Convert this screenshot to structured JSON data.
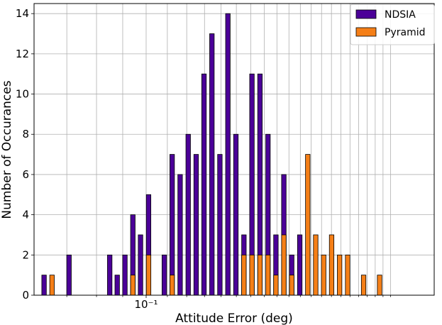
{
  "chart_data": {
    "type": "bar",
    "xlabel": "Attitude Error (deg)",
    "ylabel": "Number of Occurances",
    "x_scale": "log",
    "x_tick_label": "10⁻¹",
    "x_tick_value": 0.1,
    "ylim": [
      0,
      14.5
    ],
    "yticks": [
      0,
      2,
      4,
      6,
      8,
      10,
      12,
      14
    ],
    "grid": true,
    "legend_position": "top-right",
    "series": [
      {
        "name": "NDSIA",
        "color": "#4b0098",
        "points": [
          {
            "x": 0.0632,
            "y": 1
          },
          {
            "x": 0.0707,
            "y": 2
          },
          {
            "x": 0.0849,
            "y": 2
          },
          {
            "x": 0.0878,
            "y": 1
          },
          {
            "x": 0.0909,
            "y": 2
          },
          {
            "x": 0.0942,
            "y": 4
          },
          {
            "x": 0.0975,
            "y": 3
          },
          {
            "x": 0.1011,
            "y": 5
          },
          {
            "x": 0.1085,
            "y": 2
          },
          {
            "x": 0.1124,
            "y": 7
          },
          {
            "x": 0.1165,
            "y": 6
          },
          {
            "x": 0.1208,
            "y": 8
          },
          {
            "x": 0.1252,
            "y": 7
          },
          {
            "x": 0.1297,
            "y": 11
          },
          {
            "x": 0.1344,
            "y": 13
          },
          {
            "x": 0.1393,
            "y": 7
          },
          {
            "x": 0.1444,
            "y": 14
          },
          {
            "x": 0.1497,
            "y": 8
          },
          {
            "x": 0.1552,
            "y": 3
          },
          {
            "x": 0.1609,
            "y": 11
          },
          {
            "x": 0.1668,
            "y": 11
          },
          {
            "x": 0.1729,
            "y": 8
          },
          {
            "x": 0.1792,
            "y": 3
          },
          {
            "x": 0.1857,
            "y": 6
          },
          {
            "x": 0.1924,
            "y": 2
          },
          {
            "x": 0.1995,
            "y": 3
          }
        ]
      },
      {
        "name": "Pyramid",
        "color": "#f57f17",
        "points": [
          {
            "x": 0.0655,
            "y": 1
          },
          {
            "x": 0.0942,
            "y": 1
          },
          {
            "x": 0.1011,
            "y": 2
          },
          {
            "x": 0.1124,
            "y": 1
          },
          {
            "x": 0.1552,
            "y": 2
          },
          {
            "x": 0.1609,
            "y": 2
          },
          {
            "x": 0.1668,
            "y": 2
          },
          {
            "x": 0.1729,
            "y": 2
          },
          {
            "x": 0.1792,
            "y": 1
          },
          {
            "x": 0.1857,
            "y": 3
          },
          {
            "x": 0.1924,
            "y": 1
          },
          {
            "x": 0.2068,
            "y": 7
          },
          {
            "x": 0.2143,
            "y": 3
          },
          {
            "x": 0.2221,
            "y": 2
          },
          {
            "x": 0.2302,
            "y": 3
          },
          {
            "x": 0.2386,
            "y": 2
          },
          {
            "x": 0.2474,
            "y": 2
          },
          {
            "x": 0.2658,
            "y": 1
          },
          {
            "x": 0.2856,
            "y": 1
          }
        ]
      }
    ]
  }
}
